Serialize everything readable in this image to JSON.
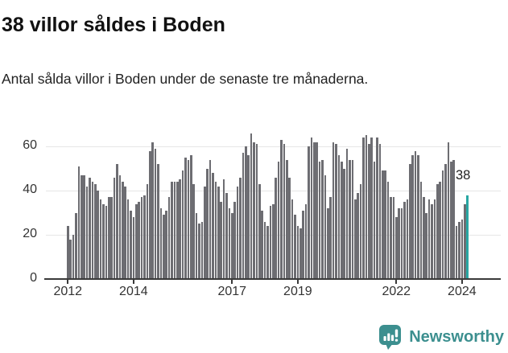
{
  "header": {
    "title": "38 villor såldes i Boden",
    "subtitle": "Antal sålda villor i Boden under de senaste tre månaderna."
  },
  "footer": {
    "brand": "Newsworthy"
  },
  "colors": {
    "bar": "#6d6d72",
    "highlight": "#29a7a3",
    "brand_teal": "#3c8f8f",
    "axis": "#3a3a3a",
    "gridline": "#e6e6e6",
    "text": "#333333"
  },
  "chart_data": {
    "type": "bar",
    "title": "38 villor såldes i Boden",
    "xlabel": "",
    "ylabel": "",
    "frequency": "monthly",
    "x_start": "2012-01",
    "x_end": "2024-03",
    "values": [
      24,
      18,
      20,
      30,
      51,
      47,
      47,
      42,
      46,
      44,
      43,
      40,
      36,
      34,
      33,
      37,
      37,
      46,
      52,
      47,
      44,
      42,
      36,
      31,
      28,
      34,
      35,
      37,
      38,
      43,
      58,
      62,
      59,
      52,
      32,
      29,
      31,
      37,
      44,
      44,
      44,
      45,
      49,
      55,
      54,
      56,
      43,
      30,
      25,
      26,
      42,
      50,
      54,
      48,
      44,
      42,
      35,
      45,
      39,
      32,
      30,
      35,
      42,
      46,
      57,
      60,
      56,
      66,
      62,
      61,
      43,
      31,
      26,
      24,
      33,
      34,
      46,
      53,
      63,
      61,
      54,
      46,
      36,
      29,
      24,
      23,
      31,
      34,
      60,
      64,
      62,
      62,
      53,
      54,
      47,
      32,
      37,
      62,
      61,
      56,
      53,
      50,
      59,
      54,
      54,
      36,
      39,
      43,
      64,
      65,
      61,
      64,
      53,
      64,
      61,
      49,
      49,
      44,
      37,
      37,
      28,
      32,
      32,
      35,
      36,
      52,
      56,
      58,
      56,
      44,
      37,
      30,
      36,
      34,
      36,
      43,
      44,
      49,
      52,
      62,
      53,
      54,
      24,
      26,
      27,
      34,
      38
    ],
    "highlight": {
      "index": 146,
      "value": 38,
      "label": "38",
      "month": "2024-03"
    },
    "ylim": [
      0,
      70
    ],
    "yticks": [
      0,
      20,
      40,
      60
    ],
    "xticks": [
      "2012",
      "2014",
      "2017",
      "2019",
      "2022",
      "2024"
    ],
    "grid": true,
    "legend": false
  }
}
